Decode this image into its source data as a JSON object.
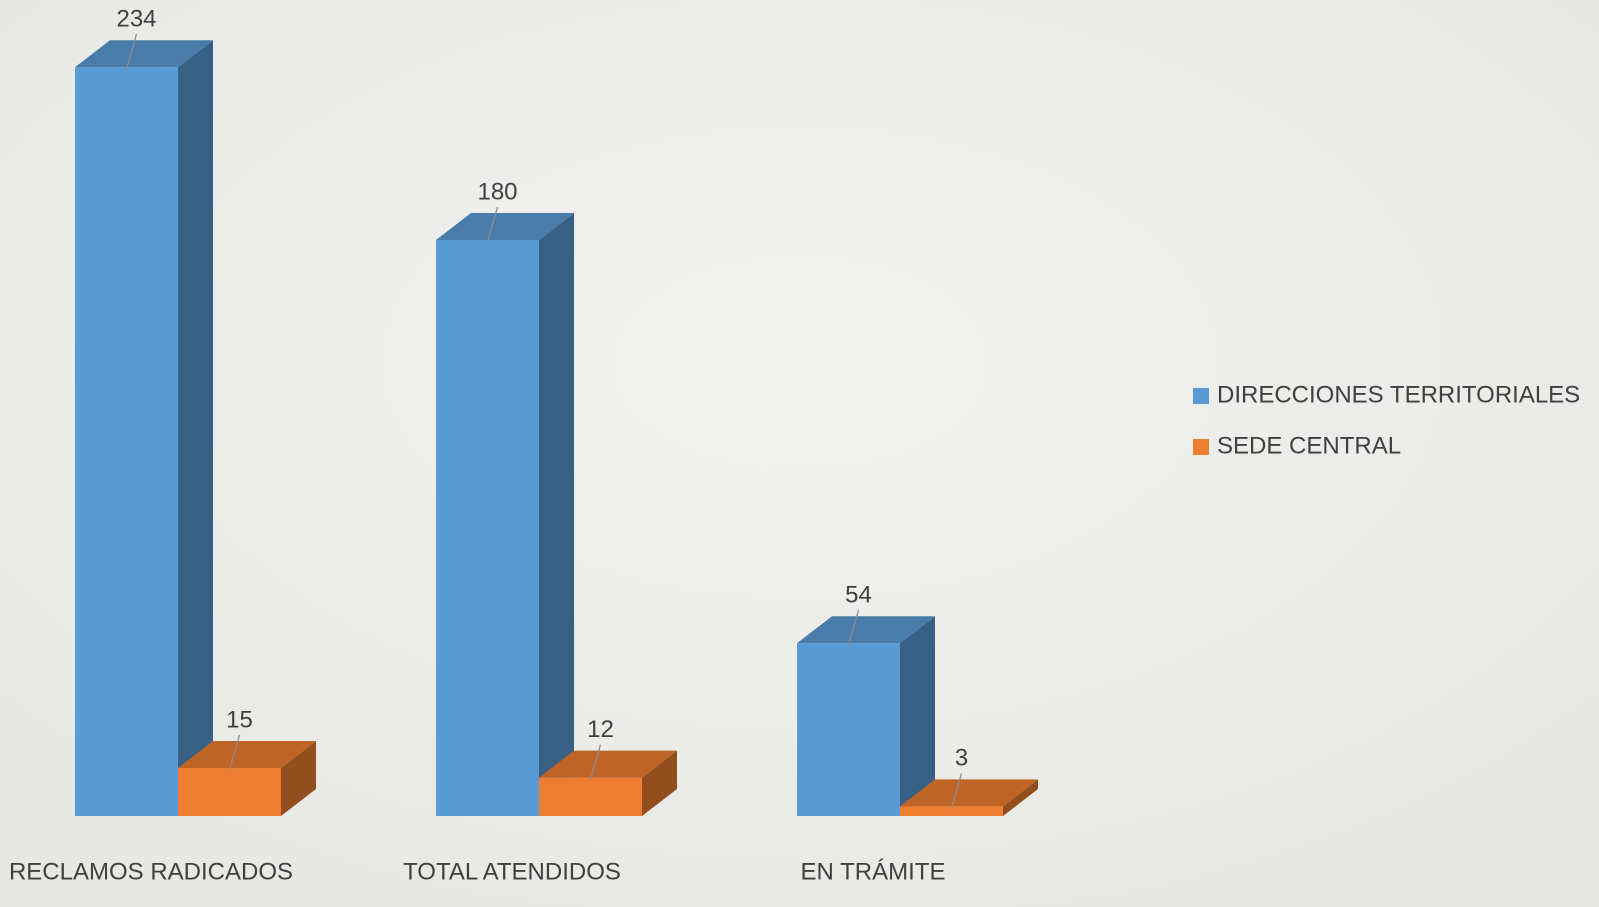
{
  "chart_data": {
    "type": "bar3d",
    "categories": [
      "RECLAMOS RADICADOS",
      "TOTAL ATENDIDOS",
      "EN TRÁMITE"
    ],
    "series": [
      {
        "name": "DIRECCIONES TERRITORIALES",
        "color": "#5b9bd5",
        "values": [
          234,
          180,
          54
        ]
      },
      {
        "name": "SEDE CENTRAL",
        "color": "#ed7d31",
        "values": [
          15,
          12,
          3
        ]
      }
    ],
    "legend": "right"
  }
}
